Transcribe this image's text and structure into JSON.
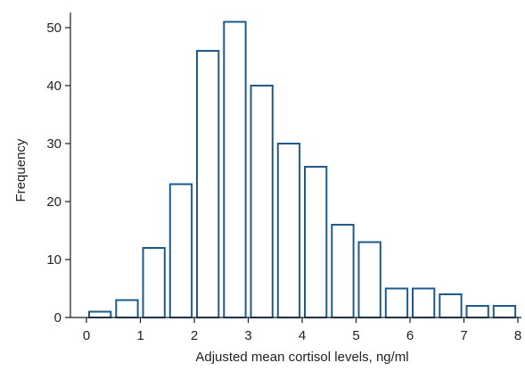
{
  "chart_data": {
    "type": "bar",
    "xlabel": "Adjusted mean cortisol levels, ng/ml",
    "ylabel": "Frequency",
    "xlim": [
      -0.1,
      8.1
    ],
    "ylim": [
      0,
      50
    ],
    "xticks": [
      0,
      1,
      2,
      3,
      4,
      5,
      6,
      7,
      8
    ],
    "yticks": [
      0,
      10,
      20,
      30,
      40,
      50
    ],
    "bin_width": 0.5,
    "bins": [
      {
        "start": 0.0,
        "end": 0.5,
        "value": 1
      },
      {
        "start": 0.5,
        "end": 1.0,
        "value": 3
      },
      {
        "start": 1.0,
        "end": 1.5,
        "value": 12
      },
      {
        "start": 1.5,
        "end": 2.0,
        "value": 23
      },
      {
        "start": 2.0,
        "end": 2.5,
        "value": 46
      },
      {
        "start": 2.5,
        "end": 3.0,
        "value": 51
      },
      {
        "start": 3.0,
        "end": 3.5,
        "value": 40
      },
      {
        "start": 3.5,
        "end": 4.0,
        "value": 30
      },
      {
        "start": 4.0,
        "end": 4.5,
        "value": 26
      },
      {
        "start": 4.5,
        "end": 5.0,
        "value": 16
      },
      {
        "start": 5.0,
        "end": 5.5,
        "value": 13
      },
      {
        "start": 5.5,
        "end": 6.0,
        "value": 5
      },
      {
        "start": 6.0,
        "end": 6.5,
        "value": 5
      },
      {
        "start": 6.5,
        "end": 7.0,
        "value": 4
      },
      {
        "start": 7.0,
        "end": 7.5,
        "value": 2
      },
      {
        "start": 7.5,
        "end": 8.0,
        "value": 2
      }
    ],
    "grid": false,
    "colors": {
      "bar_stroke": "#1f5a8c",
      "bar_fill": "#ffffff",
      "axis": "#1a1a1a"
    }
  }
}
